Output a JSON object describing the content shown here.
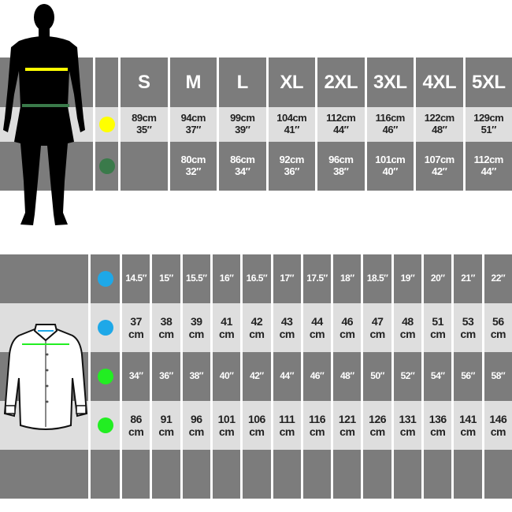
{
  "colors": {
    "chest_marker": "#ffff00",
    "waist_marker": "#3a7a4a",
    "collar_marker": "#1ea8e8",
    "shirt_chest_marker": "#22ee22",
    "dark_row": "#7c7c7c",
    "light_row": "#dedede"
  },
  "body_chart": {
    "sizes": [
      "S",
      "M",
      "L",
      "XL",
      "2XL",
      "3XL",
      "4XL",
      "5XL"
    ],
    "chest": [
      {
        "cm": "89cm",
        "in": "35″"
      },
      {
        "cm": "94cm",
        "in": "37″"
      },
      {
        "cm": "99cm",
        "in": "39″"
      },
      {
        "cm": "104cm",
        "in": "41″"
      },
      {
        "cm": "112cm",
        "in": "44″"
      },
      {
        "cm": "116cm",
        "in": "46″"
      },
      {
        "cm": "122cm",
        "in": "48″"
      },
      {
        "cm": "129cm",
        "in": "51″"
      }
    ],
    "waist": [
      {
        "cm": "",
        "in": ""
      },
      {
        "cm": "80cm",
        "in": "32″"
      },
      {
        "cm": "86cm",
        "in": "34″"
      },
      {
        "cm": "92cm",
        "in": "36″"
      },
      {
        "cm": "96cm",
        "in": "38″"
      },
      {
        "cm": "101cm",
        "in": "40″"
      },
      {
        "cm": "107cm",
        "in": "42″"
      },
      {
        "cm": "112cm",
        "in": "44″"
      }
    ]
  },
  "shirt_chart": {
    "collar_in": [
      "14.5″",
      "15″",
      "15.5″",
      "16″",
      "16.5″",
      "17″",
      "17.5″",
      "18″",
      "18.5″",
      "19″",
      "20″",
      "21″",
      "22″"
    ],
    "collar_cm": [
      "37",
      "38",
      "39",
      "41",
      "42",
      "43",
      "44",
      "46",
      "47",
      "48",
      "51",
      "53",
      "56"
    ],
    "chest_in": [
      "34″",
      "36″",
      "38″",
      "40″",
      "42″",
      "44″",
      "46″",
      "48″",
      "50″",
      "52″",
      "54″",
      "56″",
      "58″"
    ],
    "chest_cm": [
      "86",
      "91",
      "96",
      "101",
      "106",
      "111",
      "116",
      "121",
      "126",
      "131",
      "136",
      "141",
      "146"
    ],
    "unit": "cm"
  }
}
